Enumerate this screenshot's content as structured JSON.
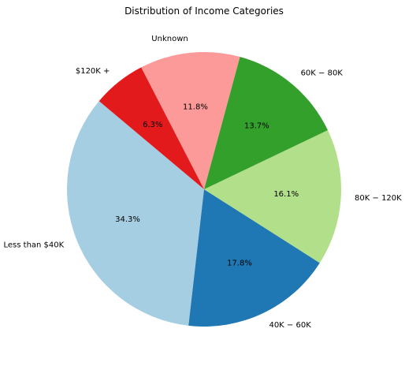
{
  "chart_data": {
    "type": "pie",
    "title": "Distribution of Income Categories",
    "categories": [
      "Less than $40K",
      "$40K - $60K",
      "$80K - $120K",
      "$60K - $80K",
      "Unknown",
      "$120K +"
    ],
    "display_labels": [
      "Less than $40K",
      "40K − 60K",
      "80K − 120K",
      "60K − 80K",
      "Unknown",
      "$120K +"
    ],
    "values": [
      34.3,
      17.8,
      16.1,
      13.7,
      11.8,
      6.3
    ],
    "percent_labels": [
      "34.3%",
      "17.8%",
      "16.1%",
      "13.7%",
      "11.8%",
      "6.3%"
    ],
    "colors": [
      "#a6cee3",
      "#1f78b4",
      "#b2df8a",
      "#33a02c",
      "#fb9a99",
      "#e31a1c"
    ],
    "start_angle_deg": 140,
    "direction": "counterclockwise",
    "legend": "none"
  }
}
